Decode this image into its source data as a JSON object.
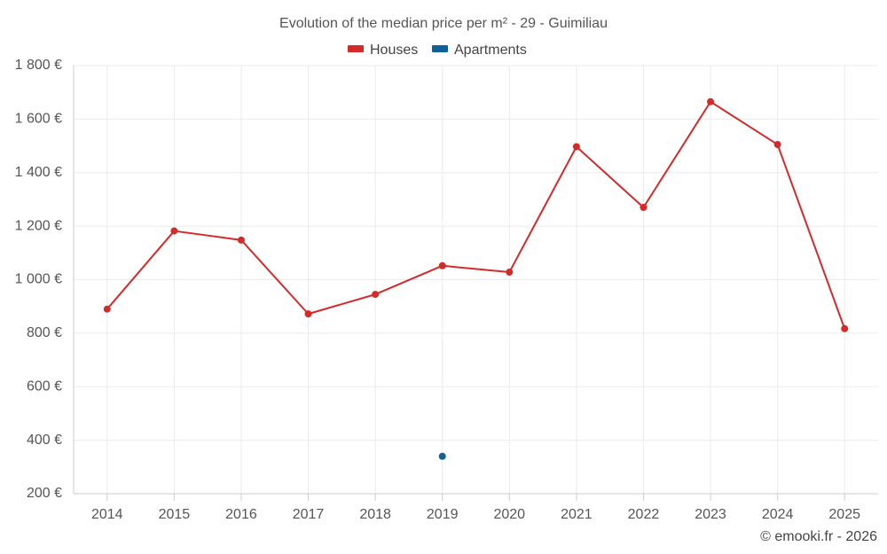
{
  "chart_data": {
    "type": "line",
    "title": "Evolution of the median price per m² - 29 - Guimiliau",
    "categories": [
      "2014",
      "2015",
      "2016",
      "2017",
      "2018",
      "2019",
      "2020",
      "2021",
      "2022",
      "2023",
      "2024",
      "2025"
    ],
    "series": [
      {
        "name": "Houses",
        "color": "#d32a2a",
        "values": [
          890,
          1182,
          1148,
          872,
          945,
          1052,
          1028,
          1497,
          1270,
          1665,
          1505,
          817
        ]
      },
      {
        "name": "Apartments",
        "color": "#0e6298",
        "values": [
          null,
          null,
          null,
          null,
          null,
          340,
          null,
          null,
          null,
          null,
          null,
          null
        ]
      }
    ],
    "y_ticks": [
      200,
      400,
      600,
      800,
      1000,
      1200,
      1400,
      1600,
      1800
    ],
    "y_tick_labels": [
      "200 €",
      "400 €",
      "600 €",
      "800 €",
      "1 000 €",
      "1 200 €",
      "1 400 €",
      "1 600 €",
      "1 800 €"
    ],
    "ylim": [
      200,
      1800
    ],
    "xlabel": "",
    "ylabel": "",
    "grid": true,
    "legend_position": "top-center"
  },
  "credit": "© emooki.fr - 2026"
}
